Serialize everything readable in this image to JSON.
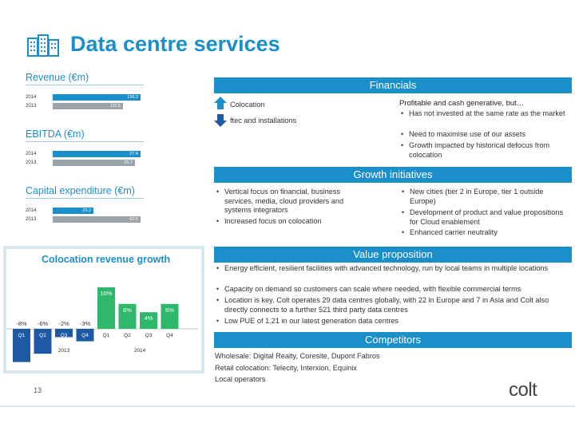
{
  "header": {
    "title": "Data centre services",
    "icon": "building-icon"
  },
  "colors": {
    "accent": "#1b8fc9",
    "bar_2014": "#1b8fc9",
    "bar_2013": "#9aa3a9",
    "green": "#2eb86b",
    "navy": "#1e5aa3"
  },
  "left": {
    "revenue": {
      "label": "Revenue (€m)",
      "rows": [
        {
          "year": "2014",
          "value": "139.2",
          "v": 139.2
        },
        {
          "year": "2013",
          "value": "111.5",
          "v": 111.5
        }
      ]
    },
    "ebitda": {
      "label": "EBITDA (€m)",
      "rows": [
        {
          "year": "2014",
          "value": "27.4",
          "v": 27.4
        },
        {
          "year": "2013",
          "value": "25.7",
          "v": 25.7
        }
      ]
    },
    "capex": {
      "label": "Capital expenditure (€m)",
      "rows": [
        {
          "year": "2014",
          "value": "29.2",
          "v": 29.2
        },
        {
          "year": "2013",
          "value": "62.5",
          "v": 62.5
        }
      ]
    }
  },
  "chart_data": {
    "type": "bar",
    "title": "Colocation revenue growth",
    "categories": [
      "Q1",
      "Q2",
      "Q3",
      "Q4",
      "Q1",
      "Q2",
      "Q3",
      "Q4"
    ],
    "groups": [
      "2013",
      "2014"
    ],
    "values": [
      -8,
      -6,
      -2,
      -3,
      10,
      6,
      4,
      6
    ],
    "labels": [
      "-8%",
      "-6%",
      "-2%",
      "-3%",
      "10%",
      "6%",
      "4%",
      "6%"
    ],
    "ylim": [
      -10,
      12
    ]
  },
  "financials": {
    "title": "Financials",
    "legend": [
      {
        "label": "Colocation"
      },
      {
        "label": "ftec and installations"
      }
    ],
    "heading": "Profitable and cash generative, but…",
    "bullets": [
      "Has not invested at the same rate as the market",
      "Need to maximise use of our assets",
      "Growth impacted by historical defocus from colocation"
    ]
  },
  "growth": {
    "title": "Growth initiatives",
    "left_bullets": [
      "Vertical focus on financial, business services, media, cloud providers and systems integrators",
      "Increased focus on colocation"
    ],
    "right_bullets": [
      "New cities (tier 2 in Europe, tier 1 outside Europe)",
      "Development of product and value propositions for Cloud enablement",
      "Enhanced carrier neutrality"
    ]
  },
  "value": {
    "title": "Value proposition",
    "bullets": [
      "Energy efficient, resilient facilities with advanced technology, run by local teams in multiple locations",
      "Capacity on demand so customers can scale where needed, with flexible commercial terms",
      "Location is key. Colt operates 29 data centres globally, with 22 in Europe and 7 in Asia and Colt also directly connects to a further 521 third party data centres",
      "Low PUE of 1.21 in our latest generation data centres"
    ]
  },
  "competitors": {
    "title": "Competitors",
    "lines": [
      "Wholesale: Digital Realty, Coresite, Dupont Fabros",
      "Retail colocation: Telecity, Interxion, Equinix",
      "Local operators"
    ]
  },
  "footer": {
    "page": "13",
    "brand": "colt"
  }
}
